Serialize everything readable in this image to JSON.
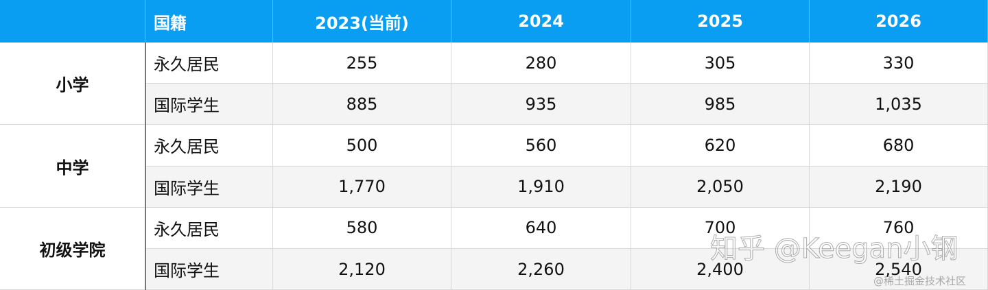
{
  "header": {
    "columns": [
      "国籍",
      "2023(当前)",
      "2024",
      "2025",
      "2026"
    ]
  },
  "groups": [
    {
      "name": "小学",
      "rows": [
        {
          "nationality": "永久居民",
          "values": [
            "255",
            "280",
            "305",
            "330"
          ]
        },
        {
          "nationality": "国际学生",
          "values": [
            "885",
            "935",
            "985",
            "1,035"
          ]
        }
      ]
    },
    {
      "name": "中学",
      "rows": [
        {
          "nationality": "永久居民",
          "values": [
            "500",
            "560",
            "620",
            "680"
          ]
        },
        {
          "nationality": "国际学生",
          "values": [
            "1,770",
            "1,910",
            "2,050",
            "2,190"
          ]
        }
      ]
    },
    {
      "name": "初级学院",
      "rows": [
        {
          "nationality": "永久居民",
          "values": [
            "580",
            "640",
            "700",
            "760"
          ]
        },
        {
          "nationality": "国际学生",
          "values": [
            "2,120",
            "2,260",
            "2,400",
            "2,540"
          ]
        }
      ]
    }
  ],
  "watermarks": {
    "main": "知乎 @Keegan小钢",
    "corner": "@稀土掘金技术社区"
  }
}
